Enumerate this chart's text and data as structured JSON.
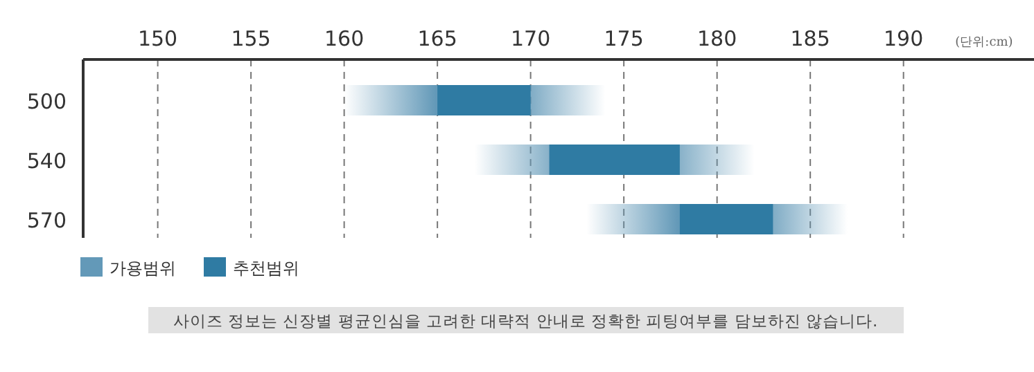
{
  "chart_data": {
    "type": "bar",
    "orientation": "horizontal",
    "categories": [
      "500",
      "540",
      "570"
    ],
    "xlim": [
      146,
      197
    ],
    "xticks": [
      150,
      155,
      160,
      165,
      170,
      175,
      180,
      185,
      190
    ],
    "grid": "x",
    "legend": "bottom left",
    "series": [
      {
        "name": "가용범위",
        "color": "#6399b8",
        "base": [
          160,
          167,
          173
        ],
        "values": [
          14,
          15,
          14
        ]
      },
      {
        "name": "추천범위",
        "color": "#2f7ba3",
        "base": [
          165,
          171,
          178
        ],
        "values": [
          5,
          7,
          5
        ]
      }
    ],
    "annotations": [
      "(단위:cm)",
      "사이즈 정보는 신장별 평균인심을 고려한 대략적 안내로 정확한 피팅여부를 담보하진 않습니다."
    ]
  }
}
